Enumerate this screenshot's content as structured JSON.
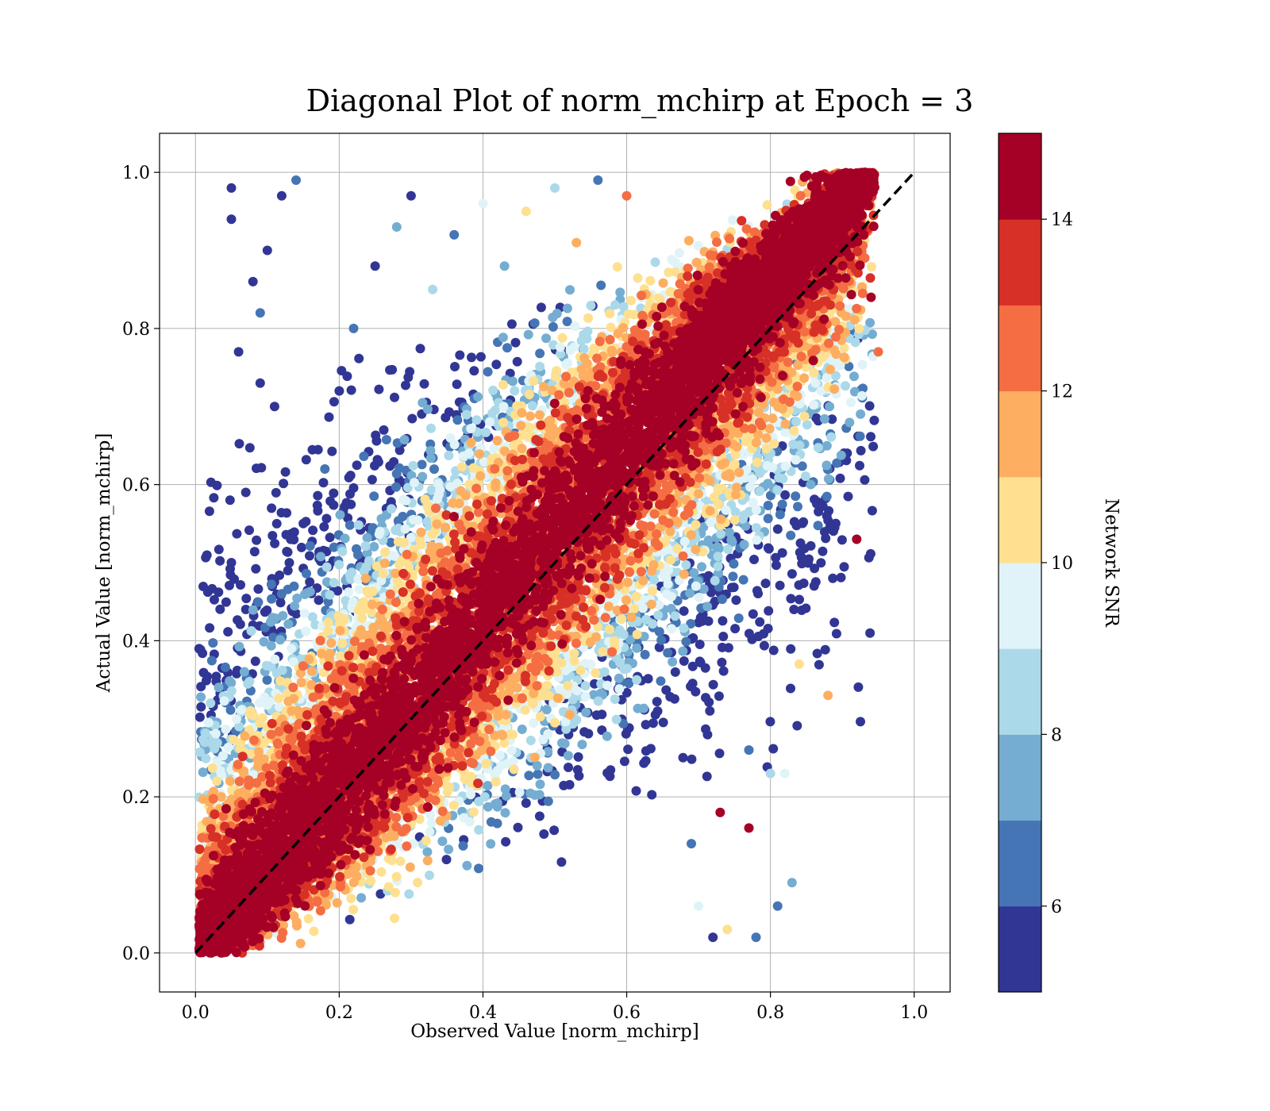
{
  "chart_data": {
    "type": "scatter",
    "title": "Diagonal Plot of norm_mchirp at Epoch = 3",
    "xlabel": "Observed Value [norm_mchirp]",
    "ylabel": "Actual Value [norm_mchirp]",
    "xlim": [
      -0.05,
      1.05
    ],
    "ylim": [
      -0.05,
      1.05
    ],
    "xticks": [
      "0.0",
      "0.2",
      "0.4",
      "0.6",
      "0.8",
      "1.0"
    ],
    "yticks": [
      "0.0",
      "0.2",
      "0.4",
      "0.6",
      "0.8",
      "1.0"
    ],
    "xtick_values": [
      0.0,
      0.2,
      0.4,
      0.6,
      0.8,
      1.0
    ],
    "ytick_values": [
      0.0,
      0.2,
      0.4,
      0.6,
      0.8,
      1.0
    ],
    "grid": true,
    "reference_line": {
      "x": [
        0,
        1
      ],
      "y": [
        0,
        1
      ],
      "style": "dashed",
      "color": "#000000"
    },
    "colorbar": {
      "label": "Network SNR",
      "range": [
        5,
        15
      ],
      "ticks": [
        "6",
        "8",
        "10",
        "12",
        "14"
      ],
      "tick_values": [
        6,
        8,
        10,
        12,
        14
      ],
      "colors": [
        "#313695",
        "#4575b4",
        "#74add1",
        "#abd9e9",
        "#e0f3f8",
        "#fee090",
        "#fdae61",
        "#f46d43",
        "#d73027",
        "#a50026"
      ]
    },
    "points": [
      {
        "x": 0.05,
        "y": 0.98,
        "snr": 5.5
      },
      {
        "x": 0.05,
        "y": 0.94,
        "snr": 5.5
      },
      {
        "x": 0.06,
        "y": 0.77,
        "snr": 5.5
      },
      {
        "x": 0.09,
        "y": 0.82,
        "snr": 6.5
      },
      {
        "x": 0.08,
        "y": 0.86,
        "snr": 5.5
      },
      {
        "x": 0.1,
        "y": 0.9,
        "snr": 5.5
      },
      {
        "x": 0.12,
        "y": 0.97,
        "snr": 5.5
      },
      {
        "x": 0.14,
        "y": 0.99,
        "snr": 6.0
      },
      {
        "x": 0.07,
        "y": 0.59,
        "snr": 5.5
      },
      {
        "x": 0.05,
        "y": 0.5,
        "snr": 5.5
      },
      {
        "x": 0.07,
        "y": 0.44,
        "snr": 5.5
      },
      {
        "x": 0.09,
        "y": 0.73,
        "snr": 5.5
      },
      {
        "x": 0.11,
        "y": 0.7,
        "snr": 5.5
      },
      {
        "x": 0.08,
        "y": 0.42,
        "snr": 5.5
      },
      {
        "x": 0.12,
        "y": 0.46,
        "snr": 6.5
      },
      {
        "x": 0.15,
        "y": 0.55,
        "snr": 5.5
      },
      {
        "x": 0.18,
        "y": 0.62,
        "snr": 6.0
      },
      {
        "x": 0.2,
        "y": 0.72,
        "snr": 5.5
      },
      {
        "x": 0.22,
        "y": 0.8,
        "snr": 6.5
      },
      {
        "x": 0.25,
        "y": 0.88,
        "snr": 5.5
      },
      {
        "x": 0.28,
        "y": 0.93,
        "snr": 7.5
      },
      {
        "x": 0.3,
        "y": 0.97,
        "snr": 5.5
      },
      {
        "x": 0.33,
        "y": 0.85,
        "snr": 8.5
      },
      {
        "x": 0.36,
        "y": 0.92,
        "snr": 6.5
      },
      {
        "x": 0.4,
        "y": 0.96,
        "snr": 9.0
      },
      {
        "x": 0.43,
        "y": 0.88,
        "snr": 7.5
      },
      {
        "x": 0.46,
        "y": 0.95,
        "snr": 10.5
      },
      {
        "x": 0.5,
        "y": 0.98,
        "snr": 8.5
      },
      {
        "x": 0.53,
        "y": 0.91,
        "snr": 11.5
      },
      {
        "x": 0.56,
        "y": 0.99,
        "snr": 6.5
      },
      {
        "x": 0.6,
        "y": 0.97,
        "snr": 12.5
      },
      {
        "x": 0.94,
        "y": 0.84,
        "snr": 14.5
      },
      {
        "x": 0.95,
        "y": 0.77,
        "snr": 12.5
      },
      {
        "x": 0.92,
        "y": 0.53,
        "snr": 14.5
      },
      {
        "x": 0.88,
        "y": 0.33,
        "snr": 11.0
      },
      {
        "x": 0.84,
        "y": 0.37,
        "snr": 10.5
      },
      {
        "x": 0.8,
        "y": 0.23,
        "snr": 8.5
      },
      {
        "x": 0.82,
        "y": 0.23,
        "snr": 9.5
      },
      {
        "x": 0.83,
        "y": 0.09,
        "snr": 7.0
      },
      {
        "x": 0.81,
        "y": 0.06,
        "snr": 6.0
      },
      {
        "x": 0.77,
        "y": 0.16,
        "snr": 14.5
      },
      {
        "x": 0.78,
        "y": 0.02,
        "snr": 6.0
      },
      {
        "x": 0.72,
        "y": 0.02,
        "snr": 5.5
      },
      {
        "x": 0.7,
        "y": 0.06,
        "snr": 9.0
      },
      {
        "x": 0.74,
        "y": 0.03,
        "snr": 10.0
      },
      {
        "x": 0.77,
        "y": 0.26,
        "snr": 6.0
      },
      {
        "x": 0.73,
        "y": 0.18,
        "snr": 14.5
      },
      {
        "x": 0.69,
        "y": 0.14,
        "snr": 6.5
      }
    ],
    "point_note": "Representative sample; the plot contains many thousands of markers concentrated along the diagonal band from (0,0) to (0.93,1.0) with high SNR (dark red) near the diagonal and lower SNR (blue) further from it."
  }
}
